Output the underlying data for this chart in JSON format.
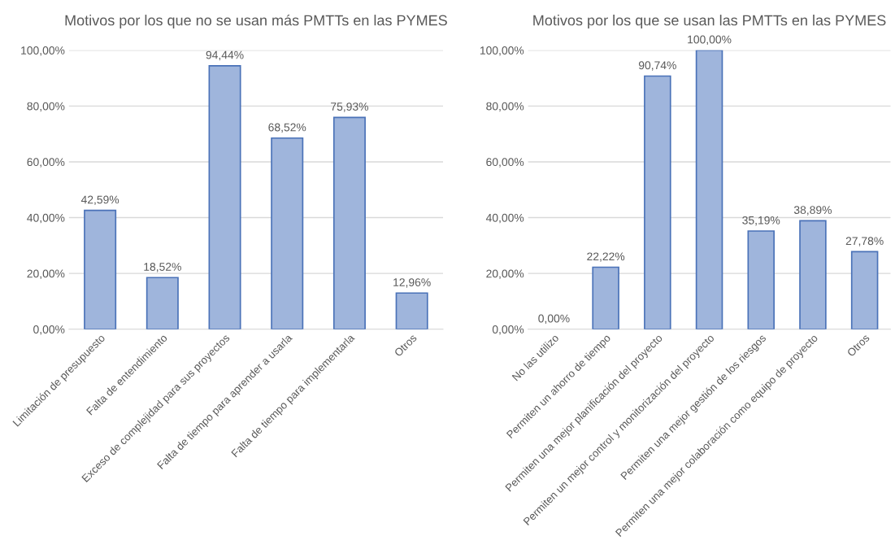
{
  "chart_data": [
    {
      "type": "bar",
      "title": "Motivos por los que no se usan más PMTTs en las PYMES",
      "categories": [
        "Limitación de presupuesto",
        "Falta de entendimiento",
        "Exceso de complejidad para sus proyectos",
        "Falta de tiempo para aprender a usarla",
        "Falta de tiempo para implementarla",
        "Otros"
      ],
      "values": [
        42.59,
        18.52,
        94.44,
        68.52,
        75.93,
        12.96
      ],
      "value_labels": [
        "42,59%",
        "18,52%",
        "94,44%",
        "68,52%",
        "75,93%",
        "12,96%"
      ],
      "color": "#9fb5dc",
      "ylim": [
        0,
        100
      ],
      "yticks": [
        {
          "value": 0,
          "label": "0,00%"
        },
        {
          "value": 20,
          "label": "20,00%"
        },
        {
          "value": 40,
          "label": "40,00%"
        },
        {
          "value": 60,
          "label": "60,00%"
        },
        {
          "value": 80,
          "label": "80,00%"
        },
        {
          "value": 100,
          "label": "100,00%"
        }
      ],
      "grid": "y"
    },
    {
      "type": "bar",
      "title": "Motivos por los que se usan las PMTTs en las PYMES",
      "categories": [
        "No las utilizo",
        "Permiten un ahorro de tiempo",
        "Permiten una mejor planificación del proyecto",
        "Permiten un mejor control y monitorización del proyecto",
        "Permiten una mejor gestión de los riesgos",
        "Permiten una mejor colaboración como equipo de proyecto",
        "Otros"
      ],
      "values": [
        0,
        22.22,
        90.74,
        100,
        35.19,
        38.89,
        27.78
      ],
      "value_labels": [
        "0,00%",
        "22,22%",
        "90,74%",
        "100,00%",
        "35,19%",
        "38,89%",
        "27,78%"
      ],
      "color": "#9fb5dc",
      "ylim": [
        0,
        100
      ],
      "yticks": [
        {
          "value": 0,
          "label": "0,00%"
        },
        {
          "value": 20,
          "label": "20,00%"
        },
        {
          "value": 40,
          "label": "40,00%"
        },
        {
          "value": 60,
          "label": "60,00%"
        },
        {
          "value": 80,
          "label": "80,00%"
        },
        {
          "value": 100,
          "label": "100,00%"
        }
      ],
      "grid": "y"
    }
  ]
}
